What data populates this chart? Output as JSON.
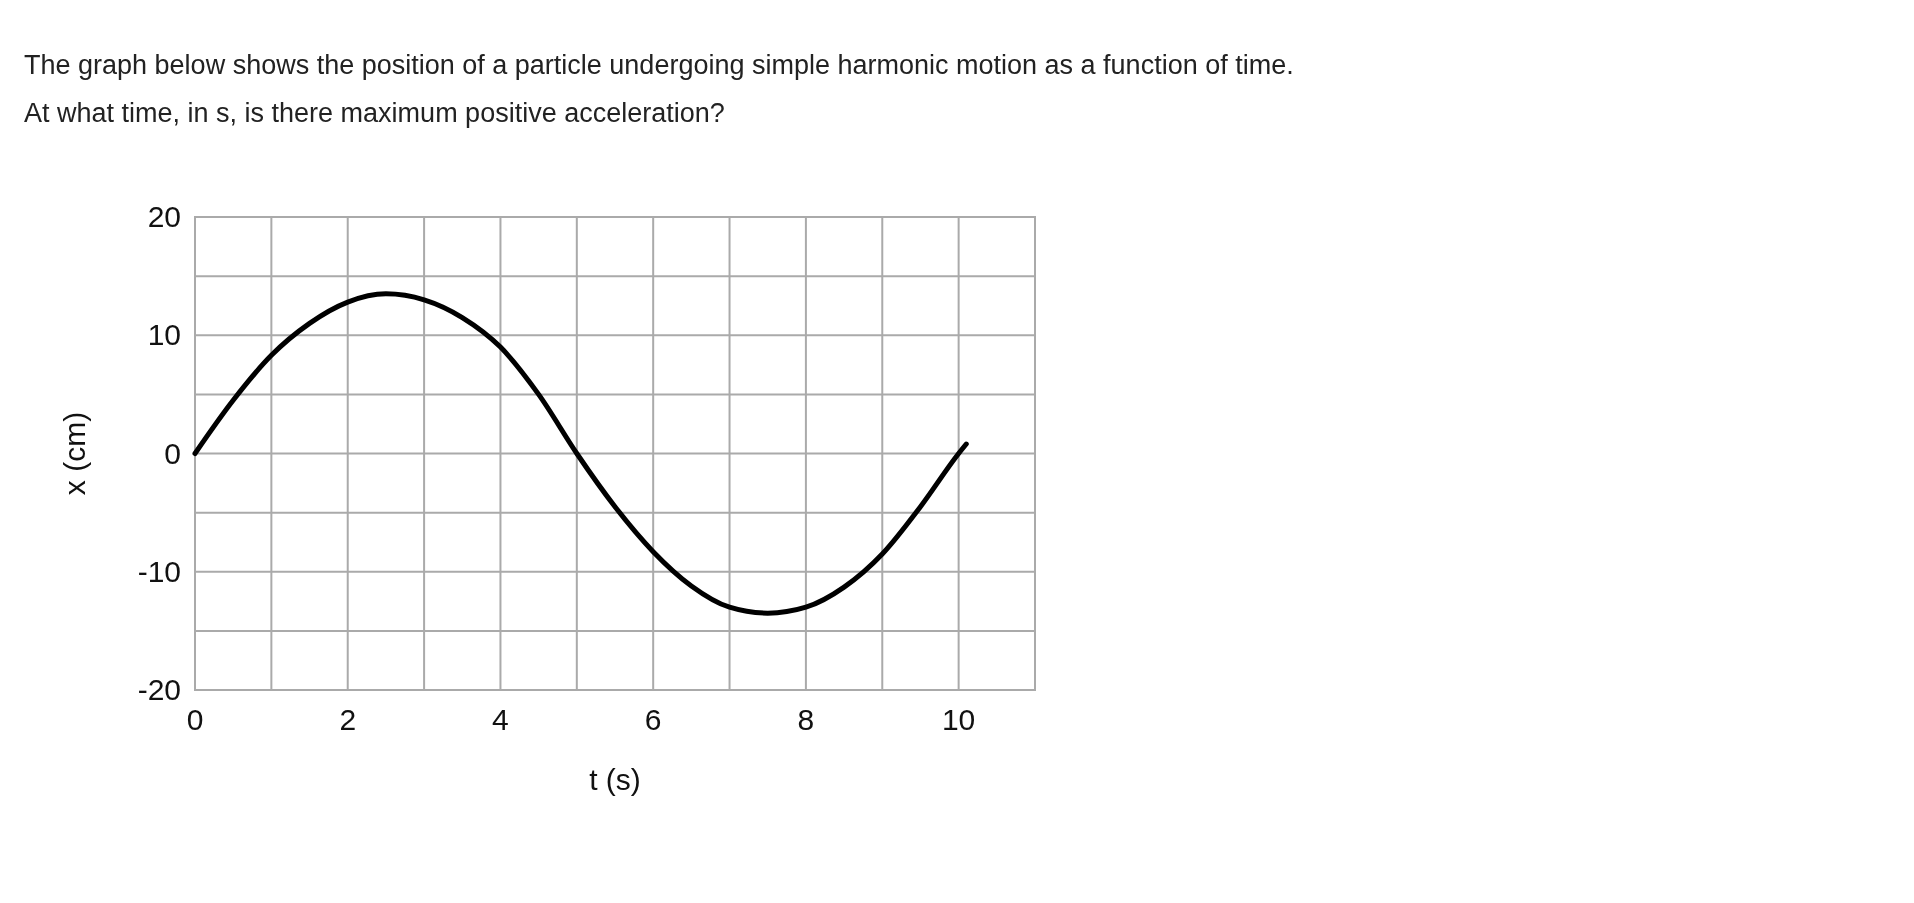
{
  "chart_data": {
    "type": "line",
    "title": "The graph below shows the position of a particle undergoing simple harmonic motion as a function of time. At what time, in s, is there maximum positive acceleration?",
    "xlabel": "t (s)",
    "ylabel": "x (cm)",
    "x": [
      0,
      0.5,
      1,
      1.5,
      2,
      2.5,
      3,
      3.5,
      4,
      4.5,
      5,
      5.5,
      6,
      6.5,
      7,
      7.5,
      8,
      8.5,
      9,
      9.5,
      10,
      10.1
    ],
    "series": [
      {
        "color": "#000000",
        "values": [
          0,
          4.5,
          8.3,
          11,
          12.8,
          13.5,
          13,
          11.5,
          9,
          5,
          0,
          -4.5,
          -8.3,
          -11.2,
          -13,
          -13.5,
          -13,
          -11.3,
          -8.5,
          -4.5,
          0,
          0.8
        ]
      }
    ],
    "xlim": [
      0,
      11
    ],
    "xticks": [
      0,
      {
        "value": 1,
        "label": null
      },
      2,
      {
        "value": 3,
        "label": null
      },
      4,
      {
        "value": 5,
        "label": null
      },
      6,
      {
        "value": 7,
        "label": null
      },
      8,
      {
        "value": 9,
        "label": null
      },
      10,
      {
        "value": 11,
        "label": null
      }
    ],
    "ylim": [
      -20,
      20
    ],
    "yticks": [
      -20,
      {
        "value": -15,
        "label": null
      },
      -10,
      {
        "value": -5,
        "label": null
      },
      0,
      {
        "value": 5,
        "label": null
      },
      10,
      {
        "value": 15,
        "label": null
      },
      20
    ],
    "grid": true,
    "marker": "none",
    "line_style": "solid"
  }
}
